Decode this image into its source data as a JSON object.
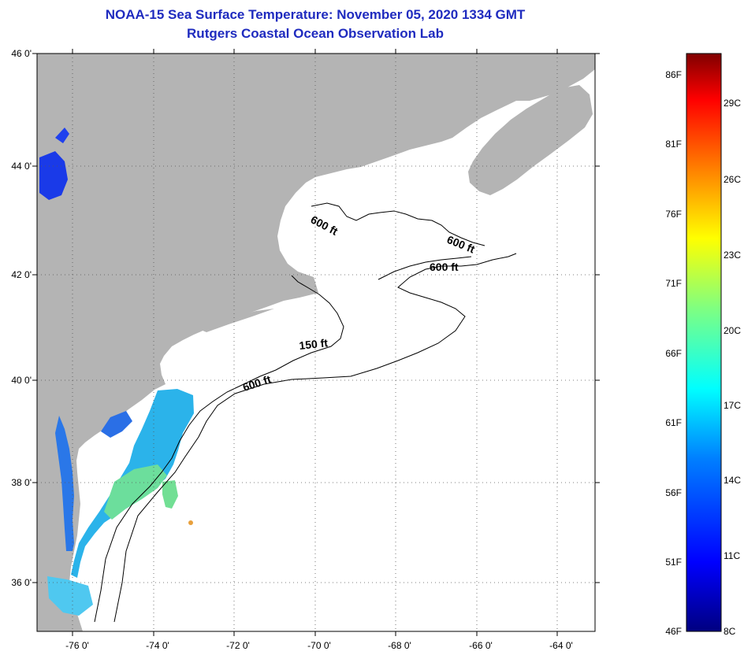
{
  "header": {
    "title": "NOAA-15 Sea Surface Temperature:  November 05, 2020 1334 GMT",
    "subtitle": "Rutgers Coastal Ocean Observation Lab"
  },
  "map": {
    "lat_labels": [
      "46 0'",
      "44 0'",
      "42 0'",
      "40 0'",
      "38 0'",
      "36 0'"
    ],
    "lon_labels": [
      "-76 0'",
      "-74 0'",
      "-72 0'",
      "-70 0'",
      "-68 0'",
      "-66 0'",
      "-64 0'"
    ],
    "contour_labels": [
      "600 ft",
      "600 ft",
      "600 ft",
      "150 ft",
      "600 ft"
    ],
    "colors": {
      "land": "#b4b4b4",
      "ocean_no_data": "#ffffff",
      "gridline": "#555555",
      "contour": "#000000"
    }
  },
  "colorbar": {
    "fahrenheit_labels": [
      "86F",
      "81F",
      "76F",
      "71F",
      "66F",
      "61F",
      "56F",
      "51F",
      "46F"
    ],
    "celsius_labels": [
      "29C",
      "26C",
      "23C",
      "20C",
      "17C",
      "14C",
      "11C",
      "8C"
    ],
    "colors": [
      "#000080",
      "#0000ff",
      "#0080ff",
      "#00ffff",
      "#80ff80",
      "#ffff00",
      "#ff8000",
      "#ff0000",
      "#800000"
    ]
  }
}
